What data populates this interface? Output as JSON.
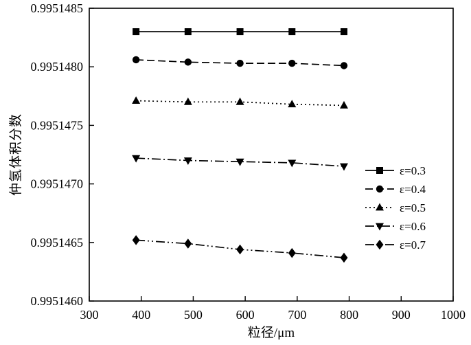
{
  "chart_data": {
    "type": "line",
    "title": "",
    "xlabel": "粒径/μm",
    "ylabel": "仲氢体积分数",
    "xlim": [
      300,
      1000
    ],
    "ylim": [
      0.995146,
      0.9951485
    ],
    "x_ticks": [
      300,
      400,
      500,
      600,
      700,
      800,
      900,
      1000
    ],
    "x_tick_labels": [
      "300",
      "400",
      "500",
      "600",
      "700",
      "800",
      "900",
      "1000"
    ],
    "y_ticks": [
      0.995146,
      0.9951465,
      0.995147,
      0.9951475,
      0.995148,
      0.9951485
    ],
    "y_tick_labels": [
      "0.9951460",
      "0.9951465",
      "0.9951470",
      "0.9951475",
      "0.9951480",
      "0.9951485"
    ],
    "x": [
      390,
      490,
      590,
      690,
      790
    ],
    "series": [
      {
        "name": "ε=0.3",
        "marker": "square",
        "linestyle": "solid",
        "values": [
          0.9951483,
          0.9951483,
          0.9951483,
          0.9951483,
          0.9951483
        ]
      },
      {
        "name": "ε=0.4",
        "marker": "circle",
        "linestyle": "dashed",
        "values": [
          0.99514806,
          0.99514804,
          0.99514803,
          0.99514803,
          0.99514801
        ]
      },
      {
        "name": "ε=0.5",
        "marker": "triangle-up",
        "linestyle": "dotted",
        "values": [
          0.99514771,
          0.9951477,
          0.9951477,
          0.99514768,
          0.99514767
        ]
      },
      {
        "name": "ε=0.6",
        "marker": "triangle-down",
        "linestyle": "dashdot",
        "values": [
          0.99514722,
          0.9951472,
          0.99514719,
          0.99514718,
          0.99514715
        ]
      },
      {
        "name": "ε=0.7",
        "marker": "diamond",
        "linestyle": "dashdotdot",
        "values": [
          0.99514652,
          0.99514649,
          0.99514644,
          0.99514641,
          0.99514637
        ]
      }
    ],
    "legend": {
      "position": "right-middle",
      "entries": [
        "ε=0.3",
        "ε=0.4",
        "ε=0.5",
        "ε=0.6",
        "ε=0.7"
      ]
    },
    "color": "#000000",
    "grid": false
  }
}
